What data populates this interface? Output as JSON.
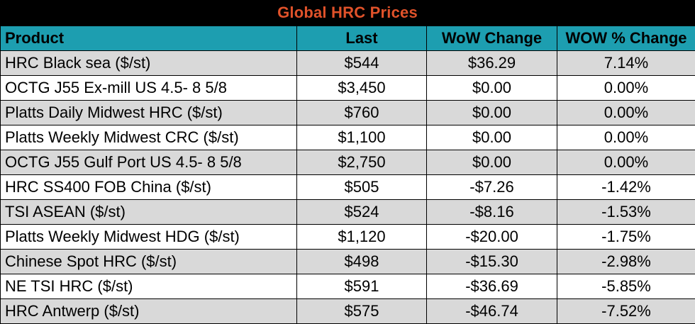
{
  "title": "Global HRC Prices",
  "colors": {
    "title_bg": "#000000",
    "title_text": "#e0522a",
    "header_bg": "#1d9eb0",
    "row_shade": "#d9d9d9",
    "row_plain": "#ffffff"
  },
  "columns": [
    "Product",
    "Last",
    "WoW Change",
    "WOW % Change"
  ],
  "rows": [
    {
      "product": "HRC Black sea ($/st)",
      "last": "$544",
      "wow_change": "$36.29",
      "wow_pct": "7.14%"
    },
    {
      "product": "OCTG J55 Ex-mill US 4.5- 8 5/8",
      "last": "$3,450",
      "wow_change": "$0.00",
      "wow_pct": "0.00%"
    },
    {
      "product": "Platts Daily Midwest HRC ($/st)",
      "last": "$760",
      "wow_change": "$0.00",
      "wow_pct": "0.00%"
    },
    {
      "product": "Platts Weekly Midwest CRC ($/st)",
      "last": "$1,100",
      "wow_change": "$0.00",
      "wow_pct": "0.00%"
    },
    {
      "product": "OCTG J55 Gulf Port US 4.5- 8 5/8",
      "last": "$2,750",
      "wow_change": "$0.00",
      "wow_pct": "0.00%"
    },
    {
      "product": "HRC SS400 FOB China ($/st)",
      "last": "$505",
      "wow_change": "-$7.26",
      "wow_pct": "-1.42%"
    },
    {
      "product": "TSI ASEAN ($/st)",
      "last": "$524",
      "wow_change": "-$8.16",
      "wow_pct": "-1.53%"
    },
    {
      "product": "Platts Weekly Midwest HDG ($/st)",
      "last": "$1,120",
      "wow_change": "-$20.00",
      "wow_pct": "-1.75%"
    },
    {
      "product": "Chinese Spot HRC ($/st)",
      "last": "$498",
      "wow_change": "-$15.30",
      "wow_pct": "-2.98%"
    },
    {
      "product": "NE TSI HRC ($/st)",
      "last": "$591",
      "wow_change": "-$36.69",
      "wow_pct": "-5.85%"
    },
    {
      "product": "HRC Antwerp ($/st)",
      "last": "$575",
      "wow_change": "-$46.74",
      "wow_pct": "-7.52%"
    }
  ]
}
